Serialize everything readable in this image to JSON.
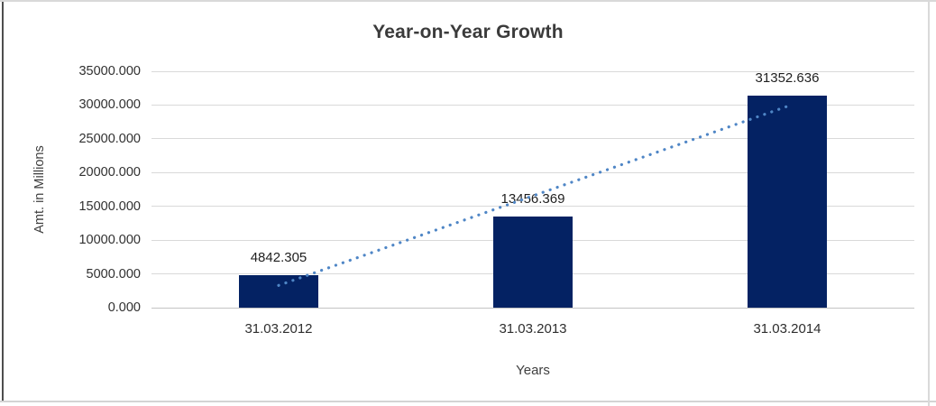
{
  "chart_data": {
    "type": "bar",
    "title": "Year-on-Year Growth",
    "xlabel": "Years",
    "ylabel": "Amt. in Millions",
    "categories": [
      "31.03.2012",
      "31.03.2013",
      "31.03.2014"
    ],
    "values": [
      4842.305,
      13456.369,
      31352.636
    ],
    "data_labels": [
      "4842.305",
      "13456.369",
      "31352.636"
    ],
    "ylim": [
      0,
      35000
    ],
    "ytick_step": 5000,
    "yticks": [
      {
        "value": 35000,
        "label": "35000.000"
      },
      {
        "value": 30000,
        "label": "30000.000"
      },
      {
        "value": 25000,
        "label": "25000.000"
      },
      {
        "value": 20000,
        "label": "20000.000"
      },
      {
        "value": 15000,
        "label": "15000.000"
      },
      {
        "value": 10000,
        "label": "10000.000"
      },
      {
        "value": 5000,
        "label": "5000.000"
      },
      {
        "value": 0,
        "label": "0.000"
      }
    ],
    "grid": true,
    "legend": false,
    "bar_color": "#042263",
    "gridline_color": "#d9d9d9",
    "trendline": {
      "type": "linear",
      "style": "dotted",
      "color": "#4f86c6",
      "start_value": 3295,
      "end_value": 29806
    }
  }
}
